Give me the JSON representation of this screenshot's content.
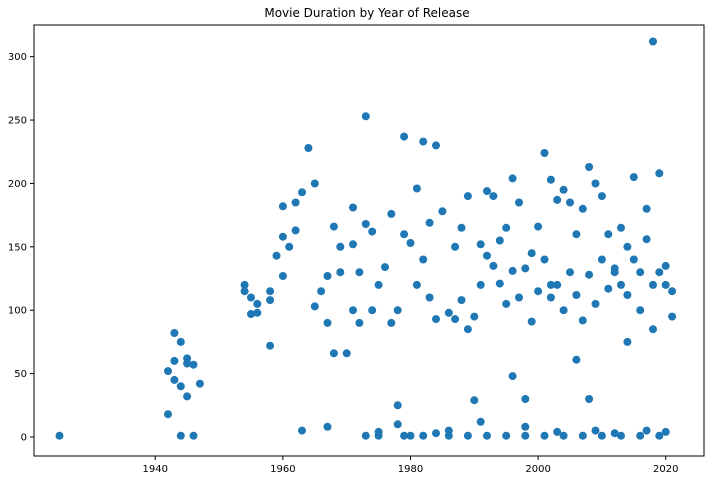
{
  "chart_data": {
    "type": "scatter",
    "title": "Movie Duration by Year of Release",
    "xlabel": "",
    "ylabel": "",
    "xlim": [
      1921,
      2026
    ],
    "ylim": [
      -15,
      325
    ],
    "x_ticks": [
      1940,
      1960,
      1980,
      2000,
      2020
    ],
    "y_ticks": [
      0,
      50,
      100,
      150,
      200,
      250,
      300
    ],
    "grid": false,
    "legend": "none",
    "point_color": "#1f77b4",
    "series": [
      {
        "x": [
          1925,
          1942,
          1942,
          1943,
          1943,
          1943,
          1944,
          1944,
          1944,
          1945,
          1945,
          1945,
          1946,
          1946,
          1947,
          1954,
          1954,
          1955,
          1955,
          1956,
          1956,
          1958,
          1958,
          1958,
          1959,
          1960,
          1960,
          1960,
          1961,
          1962,
          1962,
          1963,
          1963,
          1964,
          1965,
          1965,
          1966,
          1967,
          1967,
          1967,
          1968,
          1968,
          1969,
          1969,
          1970,
          1971,
          1971,
          1971,
          1972,
          1972,
          1973,
          1973,
          1974,
          1974,
          1975,
          1975,
          1976,
          1977,
          1977,
          1978,
          1978,
          1979,
          1979,
          1980,
          1980,
          1981,
          1981,
          1982,
          1982,
          1983,
          1983,
          1984,
          1984,
          1985,
          1986,
          1986,
          1987,
          1987,
          1988,
          1988,
          1989,
          1989,
          1990,
          1991,
          1991,
          1992,
          1992,
          1993,
          1993,
          1994,
          1994,
          1995,
          1995,
          1996,
          1996,
          1997,
          1997,
          1998,
          1998,
          1999,
          1999,
          2000,
          2000,
          2001,
          2001,
          2002,
          2002,
          2003,
          2003,
          2004,
          2004,
          2005,
          2005,
          2006,
          2006,
          2007,
          2007,
          2008,
          2008,
          2009,
          2009,
          2010,
          2010,
          2011,
          2011,
          2012,
          2012,
          2013,
          2013,
          2014,
          2014,
          2015,
          2015,
          2016,
          2016,
          2017,
          2017,
          2018,
          2018,
          2019,
          2019,
          2020,
          2020,
          2021,
          2021,
          1975,
          1979,
          1982,
          1986,
          1989,
          1992,
          1995,
          1998,
          2001,
          2004,
          2007,
          2010,
          2013,
          2016,
          2019,
          1978,
          1990,
          1998,
          2003,
          2008,
          2012,
          2017,
          2020,
          1973,
          1984,
          1991,
          1996,
          2002,
          2006,
          2009,
          2014,
          2018
        ],
        "y": [
          1,
          52,
          18,
          45,
          60,
          82,
          40,
          75,
          1,
          62,
          58,
          32,
          57,
          1,
          42,
          120,
          115,
          97,
          110,
          105,
          98,
          72,
          115,
          108,
          143,
          182,
          158,
          127,
          150,
          163,
          185,
          5,
          193,
          228,
          200,
          103,
          115,
          127,
          8,
          90,
          166,
          66,
          150,
          130,
          66,
          181,
          100,
          152,
          90,
          130,
          253,
          168,
          100,
          162,
          4,
          120,
          134,
          176,
          90,
          10,
          100,
          237,
          160,
          153,
          1,
          196,
          120,
          233,
          140,
          110,
          169,
          230,
          93,
          178,
          1,
          98,
          93,
          150,
          165,
          108,
          190,
          85,
          95,
          152,
          120,
          143,
          194,
          190,
          135,
          121,
          155,
          105,
          165,
          204,
          131,
          185,
          110,
          133,
          30,
          145,
          91,
          115,
          166,
          224,
          140,
          110,
          203,
          187,
          120,
          195,
          100,
          130,
          185,
          160,
          112,
          180,
          92,
          213,
          128,
          200,
          105,
          140,
          190,
          117,
          160,
          130,
          133,
          120,
          165,
          112,
          150,
          140,
          205,
          130,
          100,
          180,
          156,
          120,
          312,
          208,
          130,
          135,
          120,
          95,
          115,
          1,
          1,
          1,
          5,
          1,
          1,
          1,
          1,
          1,
          1,
          1,
          1,
          1,
          1,
          1,
          25,
          29,
          8,
          4,
          30,
          3,
          5,
          4,
          1,
          3,
          12,
          48,
          120,
          61,
          5,
          75,
          85
        ]
      }
    ]
  }
}
